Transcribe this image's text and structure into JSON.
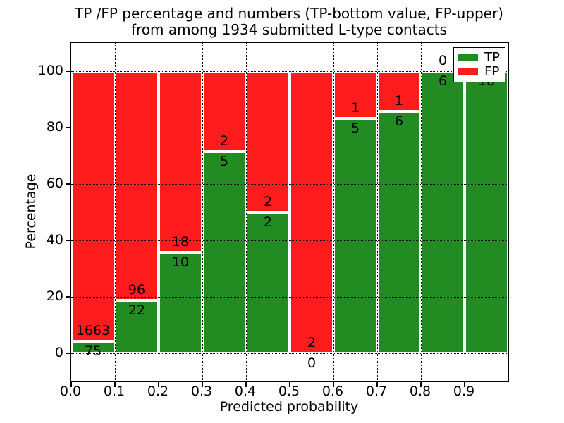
{
  "title": {
    "line1": "TP /FP percentage and numbers (TP-bottom value, FP-upper)",
    "line2": "from among 1934 submitted L-type contacts"
  },
  "chart_data": {
    "type": "bar",
    "stacked": true,
    "normalized": "percent",
    "title": "TP /FP percentage and numbers (TP-bottom value, FP-upper) from among 1934 submitted L-type contacts",
    "xlabel": "Predicted probability",
    "ylabel": "Percentage",
    "total_contacts": 1934,
    "bins": [
      "0.0-0.1",
      "0.1-0.2",
      "0.2-0.3",
      "0.3-0.4",
      "0.4-0.5",
      "0.5-0.6",
      "0.6-0.7",
      "0.7-0.8",
      "0.8-0.9",
      "0.9-1.0"
    ],
    "xticks": [
      "0.0",
      "0.1",
      "0.2",
      "0.3",
      "0.4",
      "0.5",
      "0.6",
      "0.7",
      "0.8",
      "0.9"
    ],
    "yticks": [
      0,
      20,
      40,
      60,
      80,
      100
    ],
    "ylim": [
      -10,
      110
    ],
    "grid": "dotted",
    "legend_position": "upper right",
    "series": [
      {
        "name": "TP",
        "color": "#228b22",
        "values": [
          75,
          22,
          10,
          5,
          2,
          0,
          5,
          6,
          6,
          18
        ]
      },
      {
        "name": "FP",
        "color": "#ff1c1c",
        "values": [
          1663,
          96,
          18,
          2,
          2,
          2,
          1,
          1,
          0,
          0
        ]
      }
    ],
    "tp_percent": [
      4.3,
      18.6,
      35.7,
      71.4,
      50.0,
      0.0,
      83.3,
      85.7,
      100.0,
      100.0
    ],
    "bar_edge_color": "#ffffff"
  }
}
